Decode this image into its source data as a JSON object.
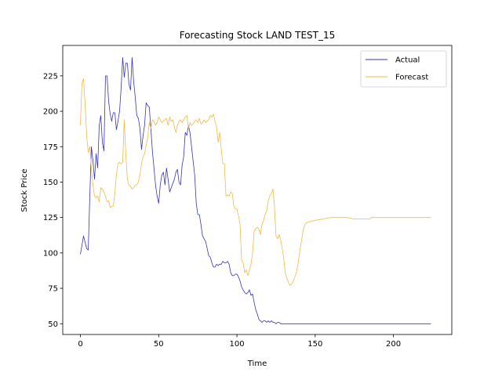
{
  "chart_data": {
    "type": "line",
    "title": "Forecasting Stock LAND TEST_15",
    "xlabel": "Time",
    "ylabel": "Stock Price",
    "xlim": [
      -11.3,
      237.3
    ],
    "ylim": [
      42.4,
      246.5
    ],
    "xticks": [
      0,
      50,
      100,
      150,
      200
    ],
    "yticks": [
      50,
      75,
      100,
      125,
      150,
      175,
      200,
      225
    ],
    "grid": false,
    "legend": "top-right",
    "series": [
      {
        "name": "Actual",
        "color": "#3333cc",
        "points": [
          [
            0,
            99
          ],
          [
            2,
            112
          ],
          [
            4,
            103
          ],
          [
            5,
            102
          ],
          [
            6,
            140
          ],
          [
            7,
            175
          ],
          [
            8,
            165
          ],
          [
            9,
            152
          ],
          [
            10,
            170
          ],
          [
            11,
            160
          ],
          [
            12,
            190
          ],
          [
            13,
            197
          ],
          [
            14,
            178
          ],
          [
            15,
            172
          ],
          [
            16,
            225
          ],
          [
            17,
            225
          ],
          [
            18,
            207
          ],
          [
            19,
            198
          ],
          [
            20,
            193
          ],
          [
            21,
            199
          ],
          [
            22,
            199
          ],
          [
            23,
            187
          ],
          [
            24,
            193
          ],
          [
            25,
            200
          ],
          [
            26,
            216
          ],
          [
            27,
            238
          ],
          [
            28,
            224
          ],
          [
            29,
            234
          ],
          [
            30,
            234
          ],
          [
            31,
            219
          ],
          [
            32,
            215
          ],
          [
            33,
            238
          ],
          [
            34,
            221
          ],
          [
            35,
            210
          ],
          [
            36,
            197
          ],
          [
            37,
            195
          ],
          [
            38,
            188
          ],
          [
            39,
            173
          ],
          [
            40,
            183
          ],
          [
            41,
            190
          ],
          [
            42,
            206
          ],
          [
            43,
            204
          ],
          [
            44,
            203
          ],
          [
            45,
            188
          ],
          [
            46,
            172
          ],
          [
            47,
            160
          ],
          [
            48,
            148
          ],
          [
            49,
            140
          ],
          [
            50,
            135
          ],
          [
            51,
            148
          ],
          [
            52,
            155
          ],
          [
            53,
            157
          ],
          [
            54,
            148
          ],
          [
            55,
            160
          ],
          [
            56,
            152
          ],
          [
            57,
            143
          ],
          [
            58,
            146
          ],
          [
            59,
            149
          ],
          [
            60,
            152
          ],
          [
            61,
            157
          ],
          [
            62,
            159
          ],
          [
            63,
            150
          ],
          [
            64,
            148
          ],
          [
            65,
            162
          ],
          [
            66,
            168
          ],
          [
            67,
            185
          ],
          [
            68,
            183
          ],
          [
            69,
            190
          ],
          [
            70,
            185
          ],
          [
            71,
            175
          ],
          [
            72,
            165
          ],
          [
            73,
            155
          ],
          [
            74,
            135
          ],
          [
            75,
            127
          ],
          [
            76,
            127
          ],
          [
            77,
            120
          ],
          [
            78,
            112
          ],
          [
            79,
            110
          ],
          [
            80,
            108
          ],
          [
            81,
            103
          ],
          [
            82,
            98
          ],
          [
            83,
            97
          ],
          [
            84,
            93
          ],
          [
            85,
            90
          ],
          [
            86,
            90
          ],
          [
            87,
            92
          ],
          [
            88,
            91
          ],
          [
            89,
            92
          ],
          [
            90,
            92
          ],
          [
            91,
            94
          ],
          [
            92,
            93
          ],
          [
            93,
            93
          ],
          [
            94,
            94
          ],
          [
            95,
            92
          ],
          [
            96,
            86
          ],
          [
            97,
            84
          ],
          [
            98,
            84
          ],
          [
            99,
            85
          ],
          [
            100,
            85
          ],
          [
            101,
            83
          ],
          [
            102,
            80
          ],
          [
            103,
            76
          ],
          [
            104,
            74
          ],
          [
            105,
            72
          ],
          [
            106,
            71
          ],
          [
            107,
            72
          ],
          [
            108,
            74
          ],
          [
            109,
            70
          ],
          [
            110,
            71
          ],
          [
            111,
            65
          ],
          [
            112,
            60
          ],
          [
            113,
            57
          ],
          [
            114,
            53
          ],
          [
            115,
            52
          ],
          [
            116,
            51
          ],
          [
            117,
            52
          ],
          [
            118,
            52
          ],
          [
            119,
            51
          ],
          [
            120,
            52
          ],
          [
            121,
            51
          ],
          [
            122,
            52
          ],
          [
            123,
            51
          ],
          [
            124,
            51
          ],
          [
            125,
            50
          ],
          [
            126,
            51
          ],
          [
            127,
            51
          ],
          [
            128,
            50
          ],
          [
            130,
            50
          ],
          [
            140,
            50
          ],
          [
            160,
            50
          ],
          [
            180,
            50
          ],
          [
            200,
            50
          ],
          [
            215,
            50
          ],
          [
            224,
            50
          ]
        ]
      },
      {
        "name": "Forecast",
        "color": "#f5b942",
        "points": [
          [
            0,
            190
          ],
          [
            1,
            220
          ],
          [
            2,
            223
          ],
          [
            3,
            205
          ],
          [
            4,
            183
          ],
          [
            5,
            171
          ],
          [
            6,
            175
          ],
          [
            7,
            160
          ],
          [
            8,
            148
          ],
          [
            9,
            140
          ],
          [
            10,
            139
          ],
          [
            11,
            140
          ],
          [
            12,
            136
          ],
          [
            13,
            146
          ],
          [
            14,
            145
          ],
          [
            15,
            143
          ],
          [
            16,
            140
          ],
          [
            17,
            136
          ],
          [
            18,
            137
          ],
          [
            19,
            132
          ],
          [
            20,
            133
          ],
          [
            21,
            133
          ],
          [
            22,
            142
          ],
          [
            23,
            155
          ],
          [
            24,
            163
          ],
          [
            25,
            164
          ],
          [
            26,
            163
          ],
          [
            27,
            164
          ],
          [
            28,
            194
          ],
          [
            29,
            170
          ],
          [
            30,
            152
          ],
          [
            31,
            148
          ],
          [
            32,
            147
          ],
          [
            33,
            145
          ],
          [
            34,
            146
          ],
          [
            35,
            148
          ],
          [
            36,
            148
          ],
          [
            37,
            150
          ],
          [
            38,
            155
          ],
          [
            39,
            163
          ],
          [
            40,
            168
          ],
          [
            41,
            170
          ],
          [
            42,
            176
          ],
          [
            43,
            181
          ],
          [
            44,
            192
          ],
          [
            45,
            188
          ],
          [
            46,
            194
          ],
          [
            47,
            193
          ],
          [
            48,
            190
          ],
          [
            49,
            192
          ],
          [
            50,
            196
          ],
          [
            51,
            194
          ],
          [
            52,
            192
          ],
          [
            53,
            193
          ],
          [
            54,
            194
          ],
          [
            55,
            195
          ],
          [
            56,
            190
          ],
          [
            57,
            196
          ],
          [
            58,
            193
          ],
          [
            59,
            194
          ],
          [
            60,
            189
          ],
          [
            61,
            185
          ],
          [
            62,
            190
          ],
          [
            63,
            193
          ],
          [
            64,
            194
          ],
          [
            65,
            192
          ],
          [
            66,
            194
          ],
          [
            67,
            196
          ],
          [
            68,
            197
          ],
          [
            69,
            188
          ],
          [
            70,
            192
          ],
          [
            71,
            190
          ],
          [
            72,
            191
          ],
          [
            73,
            193
          ],
          [
            74,
            194
          ],
          [
            75,
            192
          ],
          [
            76,
            195
          ],
          [
            77,
            191
          ],
          [
            78,
            192
          ],
          [
            79,
            194
          ],
          [
            80,
            192
          ],
          [
            81,
            193
          ],
          [
            82,
            194
          ],
          [
            83,
            197
          ],
          [
            84,
            196
          ],
          [
            85,
            198
          ],
          [
            86,
            193
          ],
          [
            87,
            189
          ],
          [
            88,
            178
          ],
          [
            89,
            185
          ],
          [
            90,
            173
          ],
          [
            91,
            163
          ],
          [
            92,
            163
          ],
          [
            93,
            140
          ],
          [
            94,
            141
          ],
          [
            95,
            140
          ],
          [
            96,
            143
          ],
          [
            97,
            142
          ],
          [
            98,
            133
          ],
          [
            99,
            131
          ],
          [
            100,
            131
          ],
          [
            101,
            126
          ],
          [
            102,
            120
          ],
          [
            103,
            95
          ],
          [
            104,
            93
          ],
          [
            105,
            86
          ],
          [
            106,
            88
          ],
          [
            107,
            84
          ],
          [
            108,
            88
          ],
          [
            109,
            92
          ],
          [
            110,
            100
          ],
          [
            111,
            115
          ],
          [
            112,
            117
          ],
          [
            113,
            118
          ],
          [
            114,
            117
          ],
          [
            115,
            113
          ],
          [
            116,
            120
          ],
          [
            117,
            123
          ],
          [
            118,
            127
          ],
          [
            119,
            130
          ],
          [
            120,
            137
          ],
          [
            121,
            140
          ],
          [
            122,
            142
          ],
          [
            123,
            145
          ],
          [
            124,
            133
          ],
          [
            125,
            112
          ],
          [
            126,
            110
          ],
          [
            127,
            113
          ],
          [
            128,
            109
          ],
          [
            129,
            103
          ],
          [
            130,
            95
          ],
          [
            131,
            85
          ],
          [
            132,
            82
          ],
          [
            133,
            79
          ],
          [
            134,
            77
          ],
          [
            135,
            78
          ],
          [
            136,
            80
          ],
          [
            137,
            83
          ],
          [
            138,
            86
          ],
          [
            139,
            92
          ],
          [
            140,
            100
          ],
          [
            141,
            107
          ],
          [
            142,
            114
          ],
          [
            143,
            119
          ],
          [
            144,
            121
          ],
          [
            146,
            122
          ],
          [
            150,
            123
          ],
          [
            155,
            124
          ],
          [
            160,
            125
          ],
          [
            170,
            125
          ],
          [
            175,
            124
          ],
          [
            180,
            124
          ],
          [
            185,
            124
          ],
          [
            186,
            125
          ],
          [
            200,
            125
          ],
          [
            215,
            125
          ],
          [
            224,
            125
          ]
        ]
      }
    ]
  }
}
